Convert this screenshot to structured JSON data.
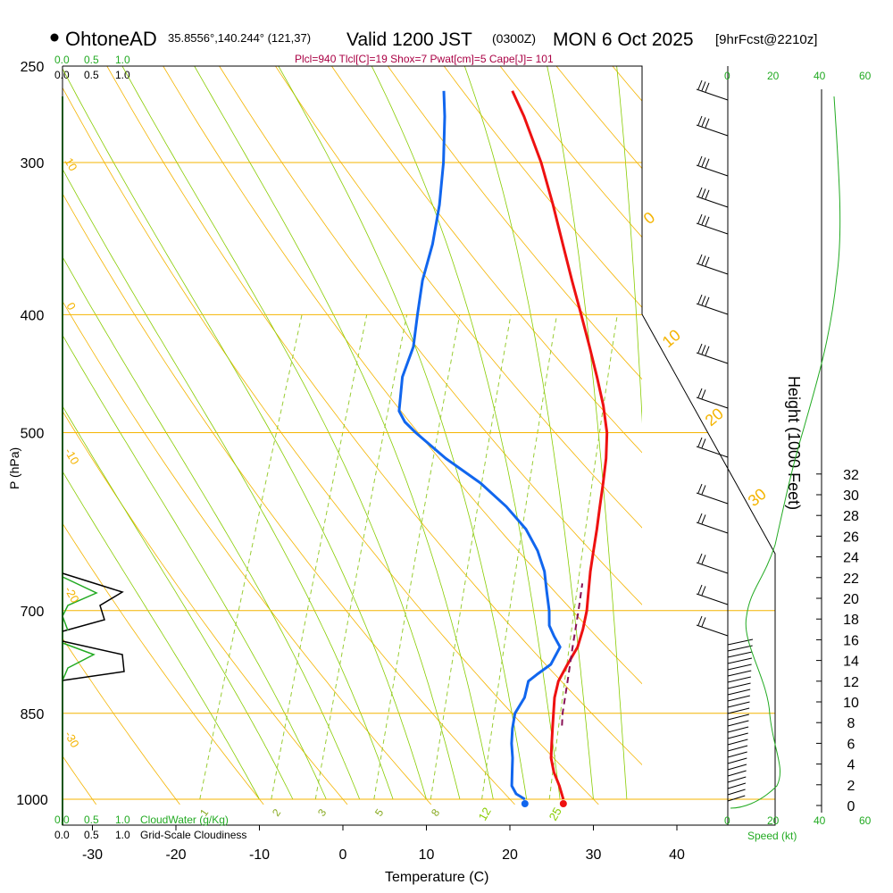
{
  "header": {
    "site": "OhtoneAD",
    "coords": "35.8556°,140.244° (121,37)",
    "valid": "Valid 1200 JST",
    "utc": "(0300Z)",
    "date": "MON 6 Oct 2025",
    "fcst": "[9hrFcst@2210z]",
    "indices": "Plcl=940 Tlcl[C]=19 Shox=7 Pwat[cm]=5 Cape[J]= 101"
  },
  "colors": {
    "temperature": "#ee1111",
    "dewpoint": "#1166ee",
    "isobar": "#f4b400",
    "dry_adiabat": "#f4b400",
    "moist_adiabat": "#88cc00",
    "mixing_ratio": "#99cc33",
    "parcel": "#881155",
    "cloud": "#22aa22",
    "indices": "#aa0044"
  },
  "chart_data": {
    "type": "line",
    "title": "Skew-T log-P sounding",
    "xlabel": "Temperature (C)",
    "ylabel": "P (hPa)",
    "right_label": "Height (1000 Feet)",
    "x_ticks": [
      "-30",
      "-20",
      "-10",
      "0",
      "10",
      "20",
      "30",
      "40"
    ],
    "p_ticks": [
      "250",
      "300",
      "400",
      "500",
      "700",
      "850",
      "1000"
    ],
    "height_ticks": [
      "0",
      "2",
      "4",
      "6",
      "8",
      "10",
      "12",
      "14",
      "16",
      "18",
      "20",
      "22",
      "24",
      "26",
      "28",
      "30",
      "32"
    ],
    "xlim": [
      -34,
      36
    ],
    "plim": [
      1010,
      250
    ],
    "skew": 1.0,
    "series": [
      {
        "name": "Temperature",
        "points": [
          [
            1000,
            26.4
          ],
          [
            975,
            25.3
          ],
          [
            950,
            24.0
          ],
          [
            925,
            23.0
          ],
          [
            900,
            22.4
          ],
          [
            875,
            21.8
          ],
          [
            850,
            21.2
          ],
          [
            825,
            20.6
          ],
          [
            800,
            20.3
          ],
          [
            775,
            20.6
          ],
          [
            750,
            21.0
          ],
          [
            725,
            20.8
          ],
          [
            700,
            20.4
          ],
          [
            675,
            19.7
          ],
          [
            650,
            19.0
          ],
          [
            625,
            18.4
          ],
          [
            600,
            17.8
          ],
          [
            575,
            17.1
          ],
          [
            550,
            16.4
          ],
          [
            525,
            15.6
          ],
          [
            500,
            14.5
          ],
          [
            475,
            12.8
          ],
          [
            450,
            10.7
          ],
          [
            425,
            8.4
          ],
          [
            400,
            5.9
          ],
          [
            375,
            3.2
          ],
          [
            350,
            0.4
          ],
          [
            325,
            -2.6
          ],
          [
            300,
            -6.0
          ],
          [
            275,
            -10.2
          ],
          [
            262,
            -12.8
          ]
        ]
      },
      {
        "name": "Dewpoint",
        "points": [
          [
            1000,
            21.8
          ],
          [
            990,
            20.5
          ],
          [
            975,
            19.6
          ],
          [
            950,
            19.0
          ],
          [
            925,
            18.4
          ],
          [
            900,
            17.6
          ],
          [
            875,
            17.0
          ],
          [
            850,
            16.6
          ],
          [
            825,
            17.0
          ],
          [
            800,
            16.7
          ],
          [
            790,
            17.4
          ],
          [
            775,
            18.6
          ],
          [
            750,
            18.9
          ],
          [
            735,
            17.7
          ],
          [
            720,
            16.6
          ],
          [
            700,
            15.9
          ],
          [
            675,
            14.7
          ],
          [
            650,
            13.5
          ],
          [
            625,
            11.7
          ],
          [
            600,
            9.3
          ],
          [
            575,
            5.9
          ],
          [
            550,
            1.7
          ],
          [
            525,
            -3.6
          ],
          [
            500,
            -8.4
          ],
          [
            490,
            -10.2
          ],
          [
            480,
            -11.4
          ],
          [
            450,
            -12.6
          ],
          [
            425,
            -12.7
          ],
          [
            400,
            -13.7
          ],
          [
            375,
            -14.7
          ],
          [
            350,
            -15.2
          ],
          [
            325,
            -16.2
          ],
          [
            300,
            -17.7
          ],
          [
            275,
            -19.7
          ],
          [
            262,
            -21.0
          ]
        ]
      },
      {
        "name": "Parcel",
        "points": [
          [
            870,
            22.8
          ],
          [
            850,
            22.3
          ],
          [
            800,
            21.4
          ],
          [
            750,
            20.4
          ],
          [
            700,
            19.4
          ],
          [
            665,
            18.6
          ]
        ]
      }
    ],
    "dry_adiabat_labels": [
      "10",
      "0",
      "-10",
      "-20",
      "-30"
    ],
    "moist_adiabat_labels": [
      "0",
      "10",
      "20",
      "30"
    ],
    "moist_adiabat_bottom_labels": [
      "12",
      "20",
      "25"
    ],
    "mixing_ratio_labels": [
      "1",
      "2",
      "3",
      "5",
      "8"
    ],
    "wind_speed_ticks": [
      "0",
      "20",
      "40",
      "60"
    ],
    "cloud_ticks": [
      "0.0",
      "0.5",
      "1.0"
    ],
    "cloud_water_label": "CloudWater (g/Kg)",
    "cloudiness_label": "Grid-Scale Cloudiness",
    "speed_label": "Speed (kt)"
  }
}
